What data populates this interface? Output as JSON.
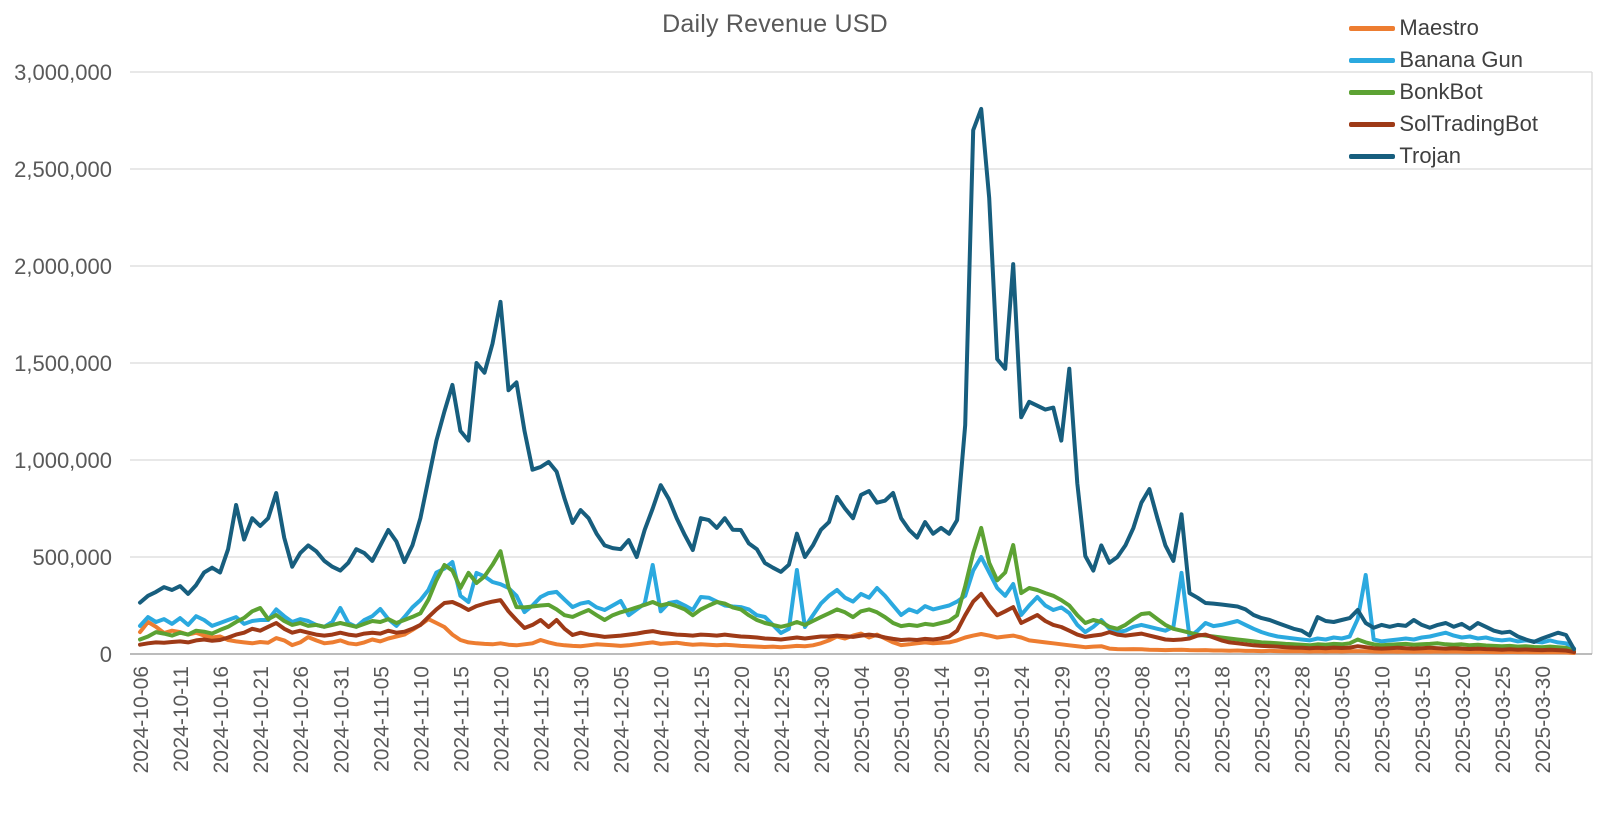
{
  "title": "Daily Revenue USD",
  "colors": {
    "background": "#ffffff",
    "gridline": "#D9D9D9",
    "axis_line": "#A6A6A6",
    "tick_text": "#595959",
    "title_text": "#595959",
    "legend_text": "#404040"
  },
  "chart_data": {
    "type": "line",
    "title": "Daily Revenue USD",
    "xlabel": "",
    "ylabel": "",
    "grid": "horizontal",
    "legend_position": "top-right",
    "x_start_date": "2024-10-06",
    "x_tick_step_days": 5,
    "n_points": 180,
    "ylim": [
      0,
      3000000
    ],
    "y_ticks": [
      0,
      500000,
      1000000,
      1500000,
      2000000,
      2500000,
      3000000
    ],
    "y_tick_labels": [
      "0",
      "500,000",
      "1,000,000",
      "1,500,000",
      "2,000,000",
      "2,500,000",
      "3,000,000"
    ],
    "x_tick_labels": [
      "2024-10-06",
      "2024-10-11",
      "2024-10-16",
      "2024-10-21",
      "2024-10-26",
      "2024-10-31",
      "2024-11-05",
      "2024-11-10",
      "2024-11-15",
      "2024-11-20",
      "2024-11-25",
      "2024-11-30",
      "2024-12-05",
      "2024-12-10",
      "2024-12-15",
      "2024-12-20",
      "2024-12-25",
      "2024-12-30",
      "2025-01-04",
      "2025-01-09",
      "2025-01-14",
      "2025-01-19",
      "2025-01-24",
      "2025-01-29",
      "2025-02-03",
      "2025-02-08",
      "2025-02-13",
      "2025-02-18",
      "2025-02-23",
      "2025-02-28",
      "2025-03-05",
      "2025-03-10",
      "2025-03-15",
      "2025-03-20",
      "2025-03-25",
      "2025-03-30"
    ],
    "series": [
      {
        "name": "Maestro",
        "color": "#ED7D31",
        "values": [
          113000,
          165000,
          140000,
          108000,
          120000,
          113000,
          100000,
          110000,
          95000,
          85000,
          90000,
          72000,
          65000,
          60000,
          55000,
          62000,
          58000,
          82000,
          70000,
          46000,
          60000,
          87000,
          70000,
          55000,
          60000,
          70000,
          55000,
          50000,
          60000,
          75000,
          65000,
          80000,
          90000,
          100000,
          124000,
          150000,
          180000,
          160000,
          139000,
          100000,
          72000,
          60000,
          55000,
          52000,
          50000,
          55000,
          48000,
          45000,
          50000,
          55000,
          72000,
          60000,
          50000,
          45000,
          42000,
          40000,
          45000,
          50000,
          48000,
          45000,
          42000,
          45000,
          50000,
          55000,
          60000,
          52000,
          55000,
          58000,
          52000,
          48000,
          50000,
          48000,
          45000,
          48000,
          45000,
          42000,
          40000,
          38000,
          36000,
          38000,
          35000,
          38000,
          42000,
          40000,
          45000,
          55000,
          70000,
          90000,
          80000,
          95000,
          105000,
          85000,
          100000,
          80000,
          60000,
          46000,
          50000,
          55000,
          60000,
          55000,
          58000,
          60000,
          70000,
          85000,
          95000,
          103000,
          95000,
          85000,
          90000,
          95000,
          85000,
          70000,
          65000,
          60000,
          55000,
          50000,
          45000,
          40000,
          35000,
          38000,
          40000,
          28000,
          25000,
          24000,
          25000,
          24000,
          22000,
          21000,
          20000,
          21000,
          22000,
          20000,
          19000,
          20000,
          18000,
          18000,
          17000,
          18000,
          16000,
          16000,
          15000,
          16000,
          15000,
          14000,
          15000,
          14000,
          13000,
          14000,
          13000,
          14000,
          13000,
          14000,
          15000,
          14000,
          13000,
          12000,
          13000,
          12000,
          13000,
          12000,
          13000,
          12000,
          13000,
          12000,
          13000,
          12000,
          11000,
          12000,
          11000,
          10000,
          10000,
          11000,
          10000,
          10000,
          9000,
          9000,
          10000,
          9000,
          8000,
          5000
        ]
      },
      {
        "name": "Banana Gun",
        "color": "#2BA9DF",
        "values": [
          145000,
          190000,
          165000,
          180000,
          155000,
          185000,
          150000,
          195000,
          175000,
          145000,
          160000,
          175000,
          190000,
          155000,
          170000,
          175000,
          175000,
          230000,
          195000,
          165000,
          180000,
          170000,
          150000,
          140000,
          165000,
          237000,
          160000,
          140000,
          175000,
          195000,
          232000,
          180000,
          145000,
          190000,
          240000,
          278000,
          330000,
          420000,
          440000,
          474000,
          300000,
          268000,
          418000,
          400000,
          371000,
          360000,
          340000,
          300000,
          216000,
          250000,
          294000,
          314000,
          320000,
          280000,
          242000,
          260000,
          268000,
          240000,
          227000,
          250000,
          273000,
          200000,
          230000,
          260000,
          459000,
          220000,
          263000,
          270000,
          250000,
          227000,
          294000,
          290000,
          270000,
          250000,
          245000,
          242000,
          230000,
          200000,
          191000,
          150000,
          108000,
          130000,
          433000,
          139000,
          200000,
          260000,
          300000,
          330000,
          290000,
          270000,
          310000,
          290000,
          340000,
          300000,
          250000,
          201000,
          230000,
          215000,
          247000,
          230000,
          240000,
          250000,
          270000,
          300000,
          430000,
          500000,
          420000,
          340000,
          300000,
          361000,
          201000,
          250000,
          294000,
          250000,
          227000,
          240000,
          211000,
          150000,
          113000,
          140000,
          175000,
          130000,
          113000,
          120000,
          140000,
          150000,
          140000,
          130000,
          120000,
          140000,
          418000,
          88000,
          120000,
          160000,
          144000,
          150000,
          160000,
          170000,
          150000,
          130000,
          113000,
          100000,
          90000,
          85000,
          80000,
          75000,
          70000,
          80000,
          75000,
          85000,
          80000,
          90000,
          180000,
          407000,
          75000,
          65000,
          70000,
          75000,
          80000,
          75000,
          85000,
          90000,
          100000,
          110000,
          95000,
          85000,
          90000,
          80000,
          85000,
          75000,
          70000,
          75000,
          65000,
          70000,
          65000,
          60000,
          70000,
          60000,
          55000,
          28000
        ]
      },
      {
        "name": "BonkBot",
        "color": "#5CA233",
        "values": [
          75000,
          90000,
          113000,
          105000,
          95000,
          110000,
          100000,
          120000,
          115000,
          105000,
          124000,
          140000,
          165000,
          186000,
          220000,
          237000,
          180000,
          201000,
          170000,
          150000,
          160000,
          145000,
          150000,
          140000,
          150000,
          160000,
          150000,
          140000,
          155000,
          170000,
          165000,
          180000,
          160000,
          175000,
          191000,
          210000,
          280000,
          380000,
          459000,
          430000,
          340000,
          418000,
          366000,
          400000,
          460000,
          530000,
          345000,
          242000,
          240000,
          245000,
          250000,
          253000,
          230000,
          200000,
          191000,
          210000,
          227000,
          200000,
          175000,
          200000,
          215000,
          227000,
          240000,
          253000,
          268000,
          250000,
          260000,
          247000,
          230000,
          200000,
          230000,
          250000,
          268000,
          260000,
          240000,
          230000,
          200000,
          175000,
          160000,
          150000,
          140000,
          150000,
          165000,
          150000,
          170000,
          190000,
          210000,
          230000,
          215000,
          190000,
          220000,
          230000,
          215000,
          190000,
          160000,
          144000,
          150000,
          145000,
          155000,
          150000,
          160000,
          170000,
          200000,
          350000,
          520000,
          650000,
          470000,
          380000,
          420000,
          562000,
          314000,
          340000,
          330000,
          314000,
          300000,
          278000,
          250000,
          200000,
          160000,
          175000,
          165000,
          140000,
          130000,
          150000,
          180000,
          206000,
          211000,
          180000,
          150000,
          130000,
          120000,
          110000,
          100000,
          95000,
          90000,
          85000,
          80000,
          75000,
          70000,
          65000,
          60000,
          58000,
          55000,
          52000,
          50000,
          48000,
          45000,
          50000,
          48000,
          52000,
          50000,
          55000,
          75000,
          60000,
          50000,
          45000,
          48000,
          50000,
          52000,
          48000,
          50000,
          52000,
          55000,
          50000,
          48000,
          50000,
          45000,
          48000,
          44000,
          42000,
          40000,
          42000,
          38000,
          40000,
          36000,
          35000,
          38000,
          35000,
          32000,
          15000
        ]
      },
      {
        "name": "SolTradingBot",
        "color": "#9E3A17",
        "values": [
          48000,
          55000,
          60000,
          58000,
          62000,
          65000,
          60000,
          70000,
          75000,
          68000,
          72000,
          85000,
          100000,
          110000,
          130000,
          120000,
          140000,
          160000,
          130000,
          110000,
          120000,
          110000,
          100000,
          95000,
          100000,
          110000,
          100000,
          95000,
          105000,
          110000,
          105000,
          120000,
          110000,
          115000,
          130000,
          150000,
          190000,
          230000,
          263000,
          268000,
          250000,
          227000,
          247000,
          260000,
          270000,
          278000,
          220000,
          175000,
          134000,
          150000,
          175000,
          139000,
          175000,
          130000,
          98000,
          110000,
          100000,
          95000,
          88000,
          92000,
          95000,
          100000,
          105000,
          113000,
          118000,
          110000,
          105000,
          100000,
          98000,
          95000,
          100000,
          98000,
          95000,
          100000,
          95000,
          90000,
          88000,
          85000,
          80000,
          78000,
          75000,
          80000,
          85000,
          80000,
          85000,
          90000,
          90000,
          95000,
          92000,
          88000,
          95000,
          100000,
          95000,
          85000,
          78000,
          72000,
          75000,
          72000,
          78000,
          75000,
          80000,
          90000,
          120000,
          200000,
          270000,
          310000,
          250000,
          200000,
          220000,
          242000,
          160000,
          180000,
          201000,
          170000,
          150000,
          139000,
          120000,
          100000,
          88000,
          95000,
          100000,
          113000,
          100000,
          95000,
          100000,
          105000,
          95000,
          85000,
          75000,
          72000,
          75000,
          80000,
          95000,
          100000,
          85000,
          70000,
          60000,
          55000,
          50000,
          45000,
          42000,
          40000,
          38000,
          35000,
          33000,
          32000,
          30000,
          32000,
          30000,
          33000,
          31000,
          33000,
          40000,
          35000,
          30000,
          28000,
          30000,
          32000,
          30000,
          28000,
          30000,
          32000,
          30000,
          28000,
          30000,
          28000,
          26000,
          28000,
          25000,
          24000,
          22000,
          24000,
          22000,
          23000,
          21000,
          20000,
          22000,
          20000,
          18000,
          10000
        ]
      },
      {
        "name": "Trojan",
        "color": "#175E7E",
        "values": [
          265000,
          300000,
          320000,
          345000,
          330000,
          350000,
          310000,
          355000,
          420000,
          445000,
          420000,
          540000,
          768000,
          590000,
          700000,
          660000,
          700000,
          830000,
          600000,
          450000,
          520000,
          560000,
          530000,
          480000,
          450000,
          430000,
          470000,
          540000,
          520000,
          480000,
          560000,
          639000,
          580000,
          474000,
          560000,
          700000,
          900000,
          1100000,
          1250000,
          1387000,
          1150000,
          1100000,
          1500000,
          1450000,
          1600000,
          1815000,
          1360000,
          1400000,
          1150000,
          950000,
          964000,
          990000,
          940000,
          800000,
          675000,
          742000,
          700000,
          620000,
          560000,
          546000,
          540000,
          587000,
          500000,
          640000,
          750000,
          870000,
          800000,
          700000,
          613000,
          536000,
          700000,
          690000,
          650000,
          700000,
          640000,
          639000,
          570000,
          540000,
          469000,
          445000,
          423000,
          460000,
          620000,
          500000,
          560000,
          640000,
          680000,
          810000,
          750000,
          700000,
          820000,
          840000,
          780000,
          790000,
          830000,
          700000,
          640000,
          600000,
          680000,
          620000,
          650000,
          620000,
          690000,
          1180000,
          2700000,
          2810000,
          2350000,
          1520000,
          1470000,
          2010000,
          1220000,
          1300000,
          1280000,
          1260000,
          1270000,
          1100000,
          1470000,
          880000,
          505000,
          430000,
          560000,
          470000,
          500000,
          560000,
          650000,
          780000,
          850000,
          700000,
          560000,
          480000,
          720000,
          314000,
          290000,
          263000,
          260000,
          255000,
          250000,
          245000,
          230000,
          201000,
          185000,
          175000,
          160000,
          145000,
          130000,
          120000,
          95000,
          190000,
          170000,
          165000,
          175000,
          185000,
          227000,
          160000,
          135000,
          150000,
          140000,
          150000,
          145000,
          175000,
          150000,
          135000,
          150000,
          160000,
          140000,
          155000,
          130000,
          160000,
          140000,
          120000,
          110000,
          115000,
          90000,
          75000,
          62000,
          80000,
          95000,
          110000,
          98000,
          25000
        ]
      }
    ]
  }
}
